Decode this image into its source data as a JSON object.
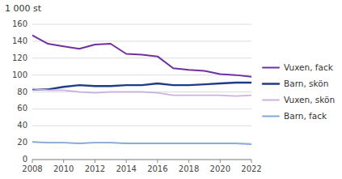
{
  "chart_data": {
    "type": "line",
    "ylabel": "1 000 st",
    "x": [
      2008,
      2009,
      2010,
      2011,
      2012,
      2013,
      2014,
      2015,
      2016,
      2017,
      2018,
      2019,
      2020,
      2021,
      2022
    ],
    "series": [
      {
        "name": "Vuxen, fack",
        "color": "#7030a0",
        "values": [
          147,
          137,
          134,
          131,
          136,
          137,
          125,
          124,
          122,
          108,
          106,
          105,
          101,
          100,
          98
        ]
      },
      {
        "name": "Barn, skön",
        "color": "#1f3c88",
        "values": [
          83,
          83,
          86,
          88,
          87,
          87,
          88,
          88,
          90,
          88,
          88,
          89,
          90,
          91,
          91
        ]
      },
      {
        "name": "Vuxen, skön",
        "color": "#c9b4e0",
        "values": [
          84,
          82,
          82,
          80,
          79,
          80,
          80,
          80,
          79,
          76,
          76,
          76,
          76,
          75,
          76
        ]
      },
      {
        "name": "Barn, fack",
        "color": "#7fa8d8",
        "values": [
          21,
          20,
          20,
          19,
          20,
          20,
          19,
          19,
          19,
          19,
          19,
          19,
          19,
          19,
          18
        ]
      }
    ],
    "xlim": [
      2008,
      2022
    ],
    "xticks": [
      2008,
      2010,
      2012,
      2014,
      2016,
      2018,
      2020,
      2022
    ],
    "ylim": [
      0,
      160
    ],
    "yticks": [
      0,
      20,
      40,
      60,
      80,
      100,
      120,
      140,
      160
    ],
    "grid": true,
    "legend": "right"
  }
}
